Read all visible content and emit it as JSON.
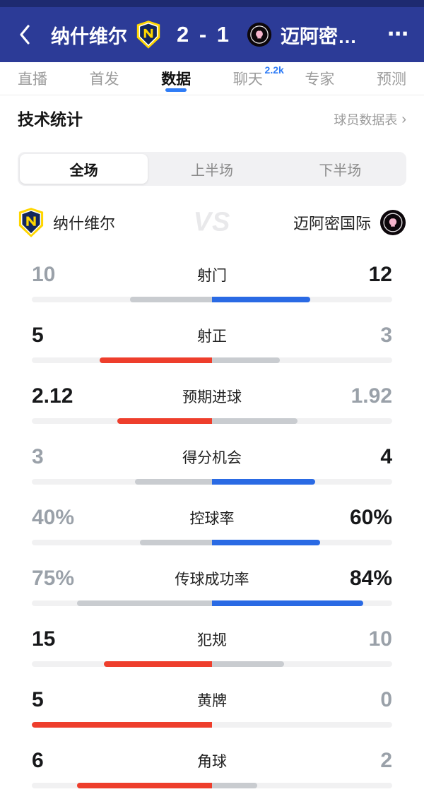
{
  "header": {
    "home_team": "纳什维尔",
    "score": "2 - 1",
    "away_team": "迈阿密…",
    "back_icon": "chevron-left",
    "more_icon": "⋯"
  },
  "tabs": [
    {
      "key": "live",
      "label": "直播"
    },
    {
      "key": "lineup",
      "label": "首发"
    },
    {
      "key": "data",
      "label": "数据",
      "active": true
    },
    {
      "key": "chat",
      "label": "聊天",
      "badge": "2.2k"
    },
    {
      "key": "expert",
      "label": "专家"
    },
    {
      "key": "predict",
      "label": "预测"
    }
  ],
  "section": {
    "title": "技术统计",
    "link_label": "球员数据表",
    "link_arrow": "›"
  },
  "segments": [
    {
      "key": "full",
      "label": "全场",
      "active": true
    },
    {
      "key": "first-half",
      "label": "上半场"
    },
    {
      "key": "second-half",
      "label": "下半场"
    }
  ],
  "teams": {
    "home_name": "纳什维尔",
    "away_name": "迈阿密国际",
    "vs_label": "VS"
  },
  "stats": [
    {
      "key": "shots",
      "label": "射门",
      "home": "10",
      "away": "12",
      "home_fill": 0.455,
      "away_fill": 0.545,
      "winner": "away"
    },
    {
      "key": "shots-on-target",
      "label": "射正",
      "home": "5",
      "away": "3",
      "home_fill": 0.625,
      "away_fill": 0.375,
      "winner": "home"
    },
    {
      "key": "expected-goals",
      "label": "预期进球",
      "home": "2.12",
      "away": "1.92",
      "home_fill": 0.525,
      "away_fill": 0.475,
      "winner": "home"
    },
    {
      "key": "big-chances",
      "label": "得分机会",
      "home": "3",
      "away": "4",
      "home_fill": 0.429,
      "away_fill": 0.571,
      "winner": "away"
    },
    {
      "key": "possession",
      "label": "控球率",
      "home": "40%",
      "away": "60%",
      "home_fill": 0.4,
      "away_fill": 0.6,
      "winner": "away"
    },
    {
      "key": "pass-accuracy",
      "label": "传球成功率",
      "home": "75%",
      "away": "84%",
      "home_fill": 0.75,
      "away_fill": 0.84,
      "winner": "away"
    },
    {
      "key": "fouls",
      "label": "犯规",
      "home": "15",
      "away": "10",
      "home_fill": 0.6,
      "away_fill": 0.4,
      "winner": "home"
    },
    {
      "key": "yellow-cards",
      "label": "黄牌",
      "home": "5",
      "away": "0",
      "home_fill": 1.0,
      "away_fill": 0.0,
      "winner": "home"
    },
    {
      "key": "corners",
      "label": "角球",
      "home": "6",
      "away": "2",
      "home_fill": 0.75,
      "away_fill": 0.25,
      "winner": "home"
    }
  ],
  "colors": {
    "header_bg": "#2c3b97",
    "header_strip": "#1e2a70",
    "accent_blue": "#2f7cf6",
    "bar_home_red": "#ee3e2c",
    "bar_away_blue": "#2a6ae4",
    "bar_loser_gray": "#c9ccd0",
    "bar_track": "#f1f1f2",
    "winner_text": "#17181a",
    "loser_text": "#9aa1a9"
  }
}
